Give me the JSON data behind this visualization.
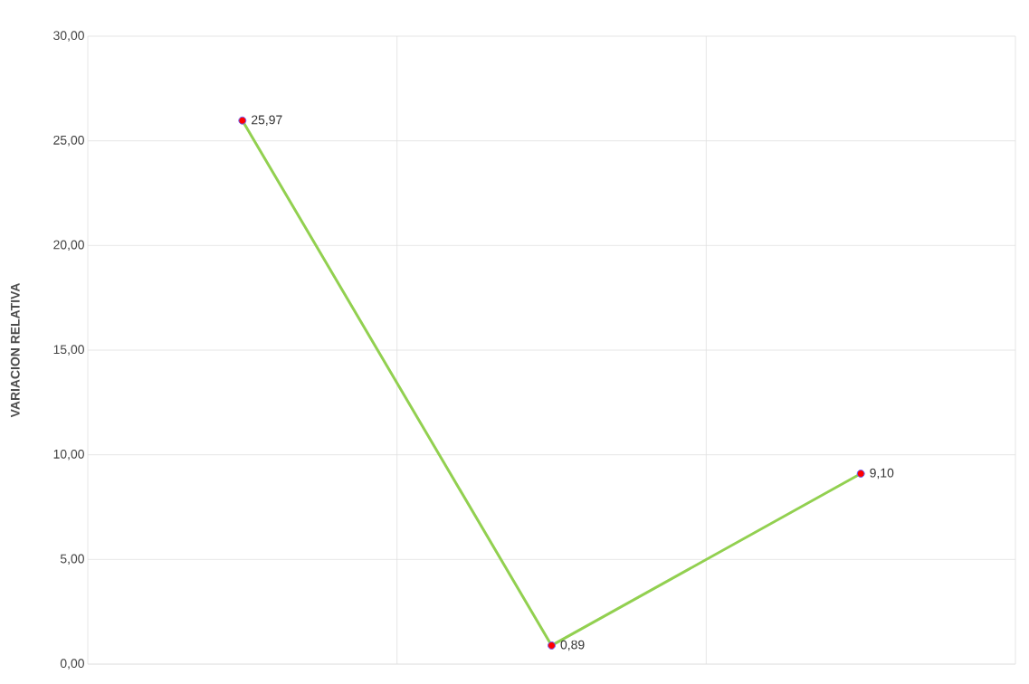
{
  "chart_data": {
    "type": "line",
    "ylabel": "VARIACION RELATIVA",
    "categories": [
      null,
      null,
      null
    ],
    "series": [
      {
        "color": "#92d050",
        "values": [
          25.97,
          0.89,
          9.1
        ],
        "value_labels": [
          "25,97",
          "0,89",
          "9,10"
        ]
      }
    ],
    "ylim": [
      0,
      30
    ],
    "yticks": [
      {
        "value": 0,
        "label": "0,00"
      },
      {
        "value": 5,
        "label": "5,00"
      },
      {
        "value": 10,
        "label": "10,00"
      },
      {
        "value": 15,
        "label": "15,00"
      },
      {
        "value": 20,
        "label": "20,00"
      },
      {
        "value": 25,
        "label": "25,00"
      },
      {
        "value": 30,
        "label": "30,00"
      }
    ],
    "grid": true,
    "marker": "circle",
    "line_style": "solid"
  }
}
